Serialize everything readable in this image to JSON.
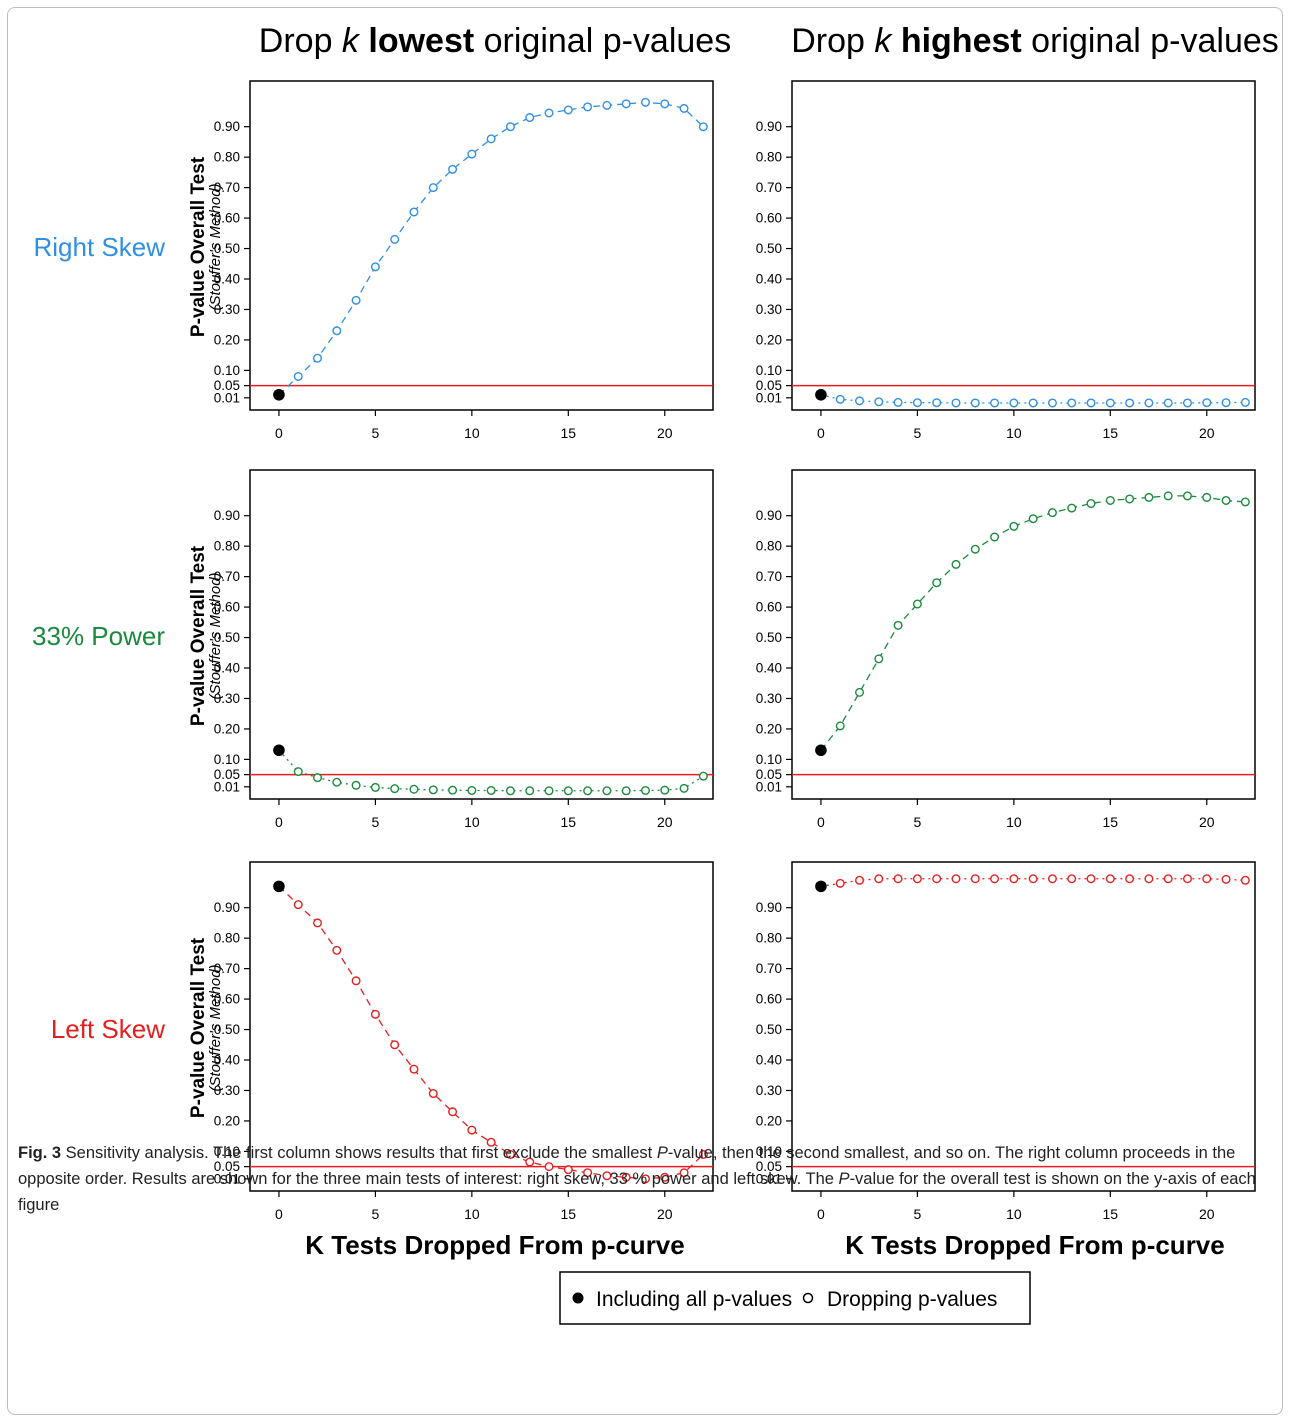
{
  "figure": {
    "col_titles": [
      {
        "pre": "Drop ",
        "k": "k",
        "bold": "lowest",
        "post": " original p-values"
      },
      {
        "pre": "Drop ",
        "k": "k",
        "bold": "highest",
        "post": " original p-values"
      }
    ],
    "row_labels": [
      {
        "text": "Right Skew",
        "color": "#2f8fe3"
      },
      {
        "text": "33% Power",
        "color": "#1a8a3c"
      },
      {
        "text": "Left Skew",
        "color": "#e51f1f"
      }
    ],
    "y_title": "P-value Overall Test",
    "y_subtitle": "(Stouffer's Method)",
    "x_title": "K Tests Dropped From p-curve",
    "reference_line": {
      "value": 0.05,
      "color": "#e51f1f"
    },
    "legend": {
      "filled": "Including all p-values",
      "open": "Dropping p-values"
    }
  },
  "chart_data": [
    {
      "type": "line",
      "row": "Right Skew",
      "col": "lowest",
      "color": "#2f8fe3",
      "y_ticks": [
        "0.01",
        "0.05",
        "0.10",
        "0.20",
        "0.30",
        "0.40",
        "0.50",
        "0.60",
        "0.70",
        "0.80",
        "0.90"
      ],
      "x_ticks": [
        "0",
        "5",
        "10",
        "15",
        "20"
      ],
      "ylim": [
        -0.03,
        1.05
      ],
      "xlim": [
        -1.5,
        22.5
      ],
      "line_style": "dashed",
      "series": [
        {
          "x": [
            0,
            1,
            2,
            3,
            4,
            5,
            6,
            7,
            8,
            9,
            10,
            11,
            12,
            13,
            14,
            15,
            16,
            17,
            18,
            19,
            20,
            21,
            22
          ],
          "values": [
            0.02,
            0.08,
            0.14,
            0.23,
            0.33,
            0.44,
            0.53,
            0.62,
            0.7,
            0.76,
            0.81,
            0.86,
            0.9,
            0.93,
            0.945,
            0.955,
            0.965,
            0.97,
            0.975,
            0.98,
            0.975,
            0.96,
            0.9
          ]
        }
      ]
    },
    {
      "type": "line",
      "row": "Right Skew",
      "col": "highest",
      "color": "#2f8fe3",
      "y_ticks": [
        "0.01",
        "0.05",
        "0.10",
        "0.20",
        "0.30",
        "0.40",
        "0.50",
        "0.60",
        "0.70",
        "0.80",
        "0.90"
      ],
      "x_ticks": [
        "0",
        "5",
        "10",
        "15",
        "20"
      ],
      "ylim": [
        -0.03,
        1.05
      ],
      "xlim": [
        -1.5,
        22.5
      ],
      "line_style": "dotted",
      "series": [
        {
          "x": [
            0,
            1,
            2,
            3,
            4,
            5,
            6,
            7,
            8,
            9,
            10,
            11,
            12,
            13,
            14,
            15,
            16,
            17,
            18,
            19,
            20,
            21,
            22
          ],
          "values": [
            0.02,
            0.005,
            0.0,
            -0.003,
            -0.005,
            -0.006,
            -0.006,
            -0.007,
            -0.007,
            -0.007,
            -0.007,
            -0.007,
            -0.007,
            -0.007,
            -0.007,
            -0.007,
            -0.007,
            -0.007,
            -0.007,
            -0.007,
            -0.006,
            -0.006,
            -0.005
          ]
        }
      ]
    },
    {
      "type": "line",
      "row": "33% Power",
      "col": "lowest",
      "color": "#1a8a3c",
      "y_ticks": [
        "0.01",
        "0.05",
        "0.10",
        "0.20",
        "0.30",
        "0.40",
        "0.50",
        "0.60",
        "0.70",
        "0.80",
        "0.90"
      ],
      "x_ticks": [
        "0",
        "5",
        "10",
        "15",
        "20"
      ],
      "ylim": [
        -0.03,
        1.05
      ],
      "xlim": [
        -1.5,
        22.5
      ],
      "line_style": "dotted",
      "series": [
        {
          "x": [
            0,
            1,
            2,
            3,
            4,
            5,
            6,
            7,
            8,
            9,
            10,
            11,
            12,
            13,
            14,
            15,
            16,
            17,
            18,
            19,
            20,
            21,
            22
          ],
          "values": [
            0.13,
            0.06,
            0.04,
            0.025,
            0.015,
            0.008,
            0.004,
            0.002,
            0.0,
            -0.001,
            -0.002,
            -0.002,
            -0.003,
            -0.003,
            -0.003,
            -0.003,
            -0.003,
            -0.003,
            -0.003,
            -0.002,
            -0.001,
            0.005,
            0.045
          ]
        }
      ]
    },
    {
      "type": "line",
      "row": "33% Power",
      "col": "highest",
      "color": "#1a8a3c",
      "y_ticks": [
        "0.01",
        "0.05",
        "0.10",
        "0.20",
        "0.30",
        "0.40",
        "0.50",
        "0.60",
        "0.70",
        "0.80",
        "0.90"
      ],
      "x_ticks": [
        "0",
        "5",
        "10",
        "15",
        "20"
      ],
      "ylim": [
        -0.03,
        1.05
      ],
      "xlim": [
        -1.5,
        22.5
      ],
      "line_style": "dashed",
      "series": [
        {
          "x": [
            0,
            1,
            2,
            3,
            4,
            5,
            6,
            7,
            8,
            9,
            10,
            11,
            12,
            13,
            14,
            15,
            16,
            17,
            18,
            19,
            20,
            21,
            22
          ],
          "values": [
            0.13,
            0.21,
            0.32,
            0.43,
            0.54,
            0.61,
            0.68,
            0.74,
            0.79,
            0.83,
            0.865,
            0.89,
            0.91,
            0.925,
            0.94,
            0.95,
            0.955,
            0.96,
            0.965,
            0.965,
            0.96,
            0.95,
            0.945
          ]
        }
      ]
    },
    {
      "type": "line",
      "row": "Left Skew",
      "col": "lowest",
      "color": "#e51f1f",
      "y_ticks": [
        "0.01",
        "0.05",
        "0.10",
        "0.20",
        "0.30",
        "0.40",
        "0.50",
        "0.60",
        "0.70",
        "0.80",
        "0.90"
      ],
      "x_ticks": [
        "0",
        "5",
        "10",
        "15",
        "20"
      ],
      "ylim": [
        -0.03,
        1.05
      ],
      "xlim": [
        -1.5,
        22.5
      ],
      "line_style": "dashed",
      "series": [
        {
          "x": [
            0,
            1,
            2,
            3,
            4,
            5,
            6,
            7,
            8,
            9,
            10,
            11,
            12,
            13,
            14,
            15,
            16,
            17,
            18,
            19,
            20,
            21,
            22
          ],
          "values": [
            0.97,
            0.91,
            0.85,
            0.76,
            0.66,
            0.55,
            0.45,
            0.37,
            0.29,
            0.23,
            0.17,
            0.13,
            0.09,
            0.065,
            0.05,
            0.04,
            0.03,
            0.02,
            0.015,
            0.01,
            0.015,
            0.03,
            0.09
          ]
        }
      ]
    },
    {
      "type": "line",
      "row": "Left Skew",
      "col": "highest",
      "color": "#e51f1f",
      "y_ticks": [
        "0.01",
        "0.05",
        "0.10",
        "0.20",
        "0.30",
        "0.40",
        "0.50",
        "0.60",
        "0.70",
        "0.80",
        "0.90"
      ],
      "x_ticks": [
        "0",
        "5",
        "10",
        "15",
        "20"
      ],
      "ylim": [
        -0.03,
        1.05
      ],
      "xlim": [
        -1.5,
        22.5
      ],
      "line_style": "dotted",
      "series": [
        {
          "x": [
            0,
            1,
            2,
            3,
            4,
            5,
            6,
            7,
            8,
            9,
            10,
            11,
            12,
            13,
            14,
            15,
            16,
            17,
            18,
            19,
            20,
            21,
            22
          ],
          "values": [
            0.97,
            0.98,
            0.99,
            0.995,
            0.995,
            0.995,
            0.995,
            0.995,
            0.995,
            0.995,
            0.995,
            0.995,
            0.995,
            0.995,
            0.995,
            0.995,
            0.995,
            0.995,
            0.995,
            0.995,
            0.995,
            0.993,
            0.99
          ]
        }
      ]
    }
  ],
  "caption": {
    "label": "Fig. 3",
    "s1": " Sensitivity analysis. The first column shows results that first exclude the smallest ",
    "p1": "P",
    "s2": "-value, then the second smallest, and so on. The right column proceeds in the opposite order. Results are shown for the three main tests of interest: right skew, 33 % power and left skew. The ",
    "p2": "P",
    "s3": "-value for the overall test is shown on the y-axis of each figure"
  }
}
